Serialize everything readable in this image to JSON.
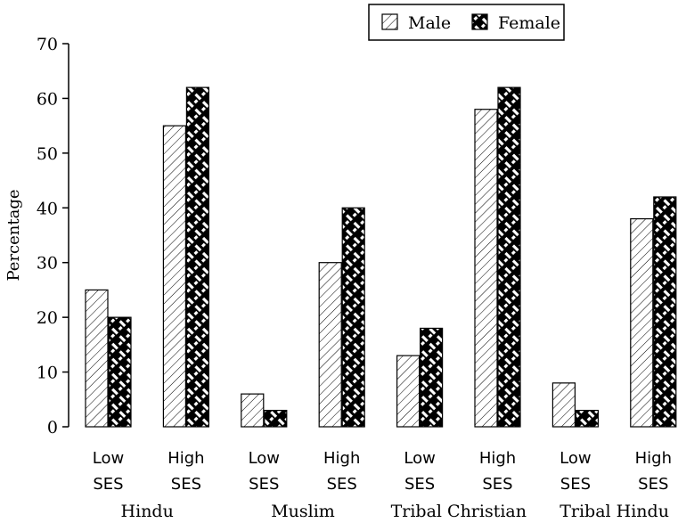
{
  "chart_data": {
    "type": "bar",
    "title": "",
    "xlabel": "",
    "ylabel": "Percentage",
    "ylim": [
      0,
      70
    ],
    "yticks": [
      0,
      10,
      20,
      30,
      40,
      50,
      60,
      70
    ],
    "categories": [
      [
        "Low",
        "SES"
      ],
      [
        "High",
        "SES"
      ],
      [
        "Low",
        "SES"
      ],
      [
        "High",
        "SES"
      ],
      [
        "Low",
        "SES"
      ],
      [
        "High",
        "SES"
      ],
      [
        "Low",
        "SES"
      ],
      [
        "High",
        "SES"
      ]
    ],
    "groups": [
      "Hindu",
      "Muslim",
      "Tribal Christian",
      "Tribal Hindu"
    ],
    "series": [
      {
        "name": "Male",
        "pattern": "diagonal-hatch",
        "values": [
          25,
          55,
          6,
          30,
          13,
          58,
          8,
          38
        ]
      },
      {
        "name": "Female",
        "pattern": "crosshatch-dark",
        "values": [
          20,
          62,
          3,
          40,
          18,
          62,
          3,
          42
        ]
      }
    ],
    "legend_position": "top-right",
    "grid": false
  }
}
